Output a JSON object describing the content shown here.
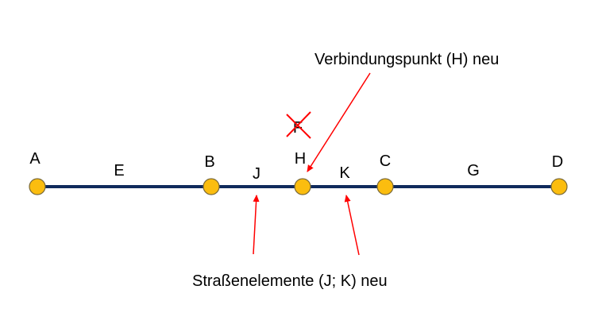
{
  "colors": {
    "road": "#0f2a5c",
    "node_fill": "#fbbd0f",
    "node_stroke": "#7a6a3a",
    "arrow": "#ff0000",
    "cross": "#ff0000"
  },
  "nodes": [
    {
      "id": "A",
      "label": "A"
    },
    {
      "id": "B",
      "label": "B"
    },
    {
      "id": "H",
      "label": "H"
    },
    {
      "id": "C",
      "label": "C"
    },
    {
      "id": "D",
      "label": "D"
    }
  ],
  "edges": [
    {
      "id": "E",
      "label": "E",
      "from": "A",
      "to": "B"
    },
    {
      "id": "J",
      "label": "J",
      "from": "B",
      "to": "H"
    },
    {
      "id": "K",
      "label": "K",
      "from": "H",
      "to": "C"
    },
    {
      "id": "G",
      "label": "G",
      "from": "C",
      "to": "D"
    }
  ],
  "removed_label": "F",
  "annotations": {
    "connection_point": "Verbindungspunkt (H) neu",
    "road_elements": "Straßenelemente (J; K) neu"
  }
}
